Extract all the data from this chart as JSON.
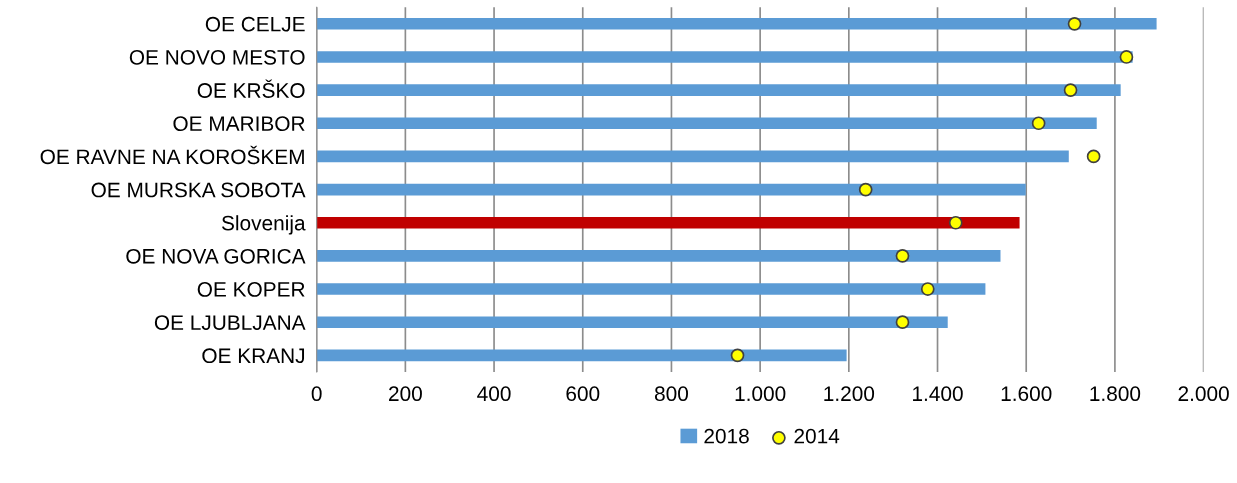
{
  "chart_data": {
    "type": "bar",
    "orientation": "horizontal",
    "categories": [
      "OE CELJE",
      "OE NOVO MESTO",
      "OE KRŠKO",
      "OE MARIBOR",
      "OE RAVNE NA KOROŠKEM",
      "OE MURSKA SOBOTA",
      "Slovenija",
      "OE NOVA GORICA",
      "OE KOPER",
      "OE LJUBLJANA",
      "OE KRANJ"
    ],
    "series": [
      {
        "name": "2018",
        "color": "#5b9bd5",
        "colors": [
          "#5b9bd5",
          "#5b9bd5",
          "#5b9bd5",
          "#5b9bd5",
          "#5b9bd5",
          "#5b9bd5",
          "#c00000",
          "#5b9bd5",
          "#5b9bd5",
          "#5b9bd5",
          "#5b9bd5"
        ],
        "values": [
          1894,
          1840,
          1813,
          1759,
          1696,
          1599,
          1585,
          1542,
          1508,
          1423,
          1195
        ]
      },
      {
        "name": "2014",
        "type": "scatter",
        "marker": "circle",
        "color": "#ffff00",
        "values": [
          1709,
          1826,
          1700,
          1628,
          1752,
          1238,
          1441,
          1321,
          1378,
          1321,
          949
        ]
      }
    ],
    "xlim": [
      0,
      2000
    ],
    "xticks": [
      0,
      200,
      400,
      600,
      800,
      {
        "value": 1000,
        "label": "1.000"
      },
      {
        "value": 1200,
        "label": "1.200"
      },
      {
        "value": 1400,
        "label": "1.400"
      },
      {
        "value": 1600,
        "label": "1.600"
      },
      {
        "value": 1800,
        "label": "1.800"
      },
      {
        "value": 2000,
        "label": "2.000"
      }
    ],
    "grid": "x",
    "legend": "bottom"
  }
}
